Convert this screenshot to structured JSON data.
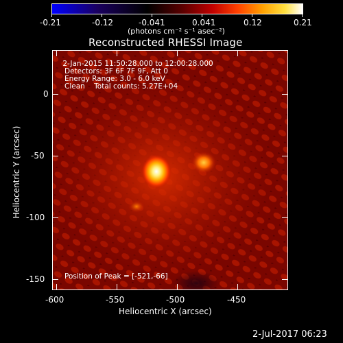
{
  "colorbar": {
    "ticks": [
      "-0.21",
      "-0.12",
      "-0.041",
      "0.041",
      "0.12",
      "0.21"
    ],
    "units_label": "(photons cm⁻² s⁻¹ asec⁻²)",
    "colors": [
      "#0000ff",
      "#000000",
      "#7a0000",
      "#ff0000",
      "#ffb000",
      "#ffffff"
    ]
  },
  "title": "Reconstructed RHESSI Image",
  "info": {
    "line1": " 2-Jan-2015 11:50:28.000 to 12:00:28.000",
    "line2": "Detectors: 3F 6F 7F 9F, Att 0",
    "line3": "Energy Range: 3.0 - 6.0 keV",
    "line4": "Clean    Total counts: 5.27E+04"
  },
  "peak": "Position of Peak = [-521,-66]",
  "x_axis": {
    "label": "Heliocentric X (arcsec)",
    "ticks": [
      "-600",
      "-550",
      "-500",
      "-450"
    ]
  },
  "y_axis": {
    "label": "Heliocentric Y (arcsec)",
    "ticks": [
      "0",
      "-50",
      "-100",
      "-150"
    ]
  },
  "footer_timestamp": "2-Jul-2017 06:23"
}
